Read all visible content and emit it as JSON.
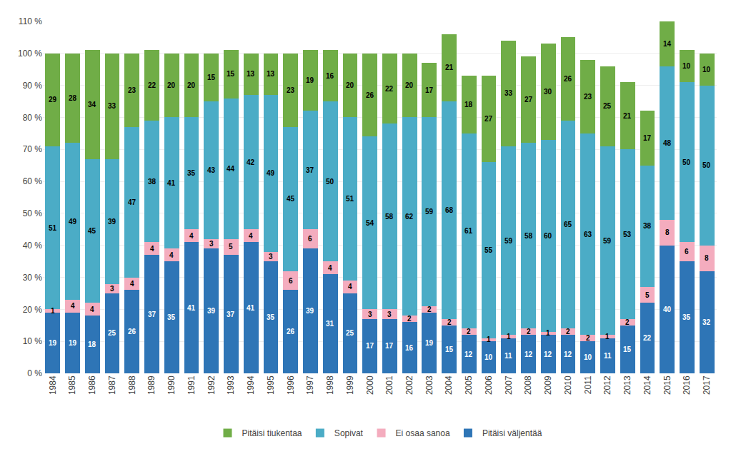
{
  "chart_data": {
    "type": "bar",
    "stacked": true,
    "data_labels": true,
    "grid": true,
    "legend": "bottom",
    "categories": [
      "1984",
      "1985",
      "1986",
      "1987",
      "1988",
      "1989",
      "1990",
      "1991",
      "1992",
      "1993",
      "1994",
      "1995",
      "1996",
      "1997",
      "1998",
      "1999",
      "2000",
      "2001",
      "2002",
      "2003",
      "2004",
      "2005",
      "2006",
      "2007",
      "2008",
      "2009",
      "2010",
      "2011",
      "2012",
      "2013",
      "2014",
      "2015",
      "2016",
      "2017"
    ],
    "series": [
      {
        "name": "Pitäisi väljentää",
        "color": "#2E75B6",
        "values": [
          19,
          19,
          18,
          25,
          26,
          37,
          35,
          41,
          39,
          37,
          41,
          35,
          26,
          39,
          31,
          25,
          17,
          17,
          16,
          19,
          15,
          12,
          10,
          11,
          12,
          12,
          12,
          10,
          11,
          15,
          22,
          40,
          35,
          32
        ]
      },
      {
        "name": "Ei osaa sanoa",
        "color": "#F4ACBE",
        "values": [
          1,
          4,
          4,
          3,
          4,
          4,
          4,
          4,
          3,
          5,
          4,
          3,
          6,
          6,
          4,
          4,
          3,
          3,
          2,
          2,
          2,
          2,
          1,
          1,
          2,
          1,
          2,
          2,
          1,
          2,
          5,
          8,
          6,
          8
        ]
      },
      {
        "name": "Sopivat",
        "color": "#4BACC6",
        "values": [
          51,
          49,
          45,
          39,
          47,
          38,
          41,
          35,
          43,
          44,
          42,
          49,
          45,
          37,
          50,
          51,
          54,
          58,
          62,
          59,
          68,
          61,
          55,
          59,
          58,
          60,
          65,
          63,
          59,
          53,
          38,
          48,
          50,
          50
        ]
      },
      {
        "name": "Pitäisi tiukentaa",
        "color": "#70AD47",
        "values": [
          29,
          28,
          34,
          33,
          23,
          22,
          20,
          20,
          15,
          15,
          13,
          13,
          23,
          19,
          16,
          20,
          26,
          22,
          20,
          17,
          21,
          18,
          27,
          33,
          27,
          30,
          26,
          23,
          25,
          21,
          17,
          14,
          10,
          10
        ]
      }
    ],
    "ylim": [
      0,
      110
    ],
    "yticks": [
      {
        "value": 0,
        "label": "0 %"
      },
      {
        "value": 10,
        "label": "10 %"
      },
      {
        "value": 20,
        "label": "20 %"
      },
      {
        "value": 30,
        "label": "30 %"
      },
      {
        "value": 40,
        "label": "40 %"
      },
      {
        "value": 50,
        "label": "50 %"
      },
      {
        "value": 60,
        "label": "60 %"
      },
      {
        "value": 70,
        "label": "70 %"
      },
      {
        "value": 80,
        "label": "80 %"
      },
      {
        "value": 90,
        "label": "90 %"
      },
      {
        "value": 100,
        "label": "100 %"
      },
      {
        "value": 110,
        "label": "110 %"
      }
    ]
  }
}
